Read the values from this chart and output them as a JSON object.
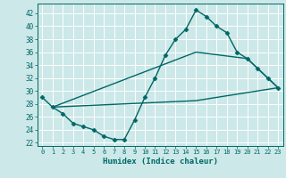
{
  "xlabel": "Humidex (Indice chaleur)",
  "bg_color": "#cce8e8",
  "grid_color": "#ffffff",
  "line_color": "#006666",
  "xlim": [
    -0.5,
    23.5
  ],
  "ylim": [
    21.5,
    43.5
  ],
  "yticks": [
    22,
    24,
    26,
    28,
    30,
    32,
    34,
    36,
    38,
    40,
    42
  ],
  "xticks": [
    0,
    1,
    2,
    3,
    4,
    5,
    6,
    7,
    8,
    9,
    10,
    11,
    12,
    13,
    14,
    15,
    16,
    17,
    18,
    19,
    20,
    21,
    22,
    23
  ],
  "line1_x": [
    0,
    1,
    2,
    3,
    4,
    5,
    6,
    7,
    8,
    9,
    10,
    11,
    12,
    13,
    14,
    15,
    16,
    17,
    18,
    19,
    20,
    21,
    22,
    23
  ],
  "line1_y": [
    29.0,
    27.5,
    26.5,
    25.0,
    24.5,
    24.0,
    23.0,
    22.5,
    22.5,
    25.5,
    29.0,
    32.0,
    35.5,
    38.0,
    39.5,
    42.5,
    41.5,
    40.0,
    39.0,
    36.0,
    35.0,
    33.5,
    32.0,
    30.5
  ],
  "line2_x": [
    1,
    15,
    20,
    23
  ],
  "line2_y": [
    27.5,
    36.0,
    35.0,
    30.5
  ],
  "line3_x": [
    1,
    15,
    23
  ],
  "line3_y": [
    27.5,
    28.5,
    30.5
  ],
  "marker": "D",
  "markersize": 2.5,
  "linewidth": 1.0
}
